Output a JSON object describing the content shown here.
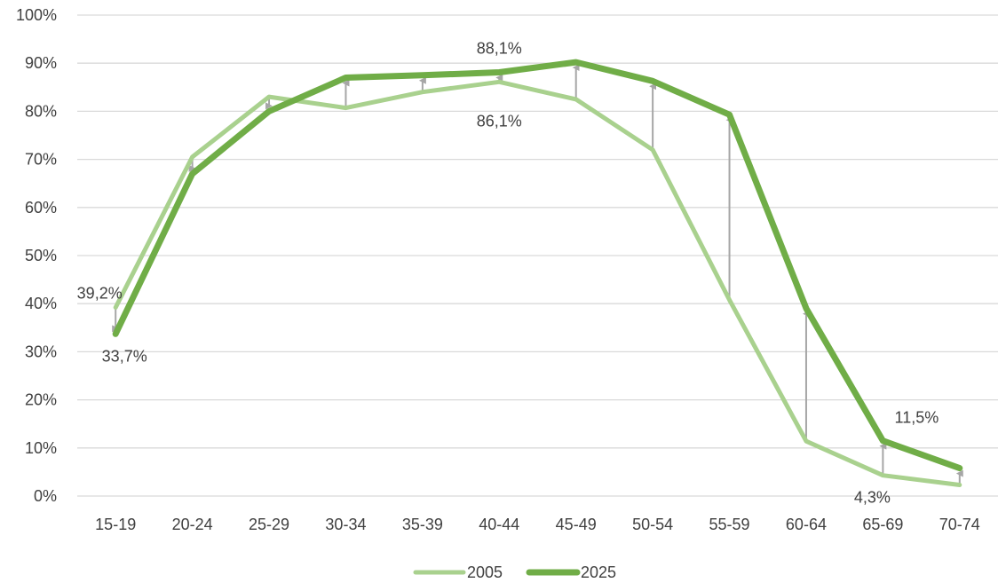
{
  "chart_data": {
    "type": "line",
    "categories": [
      "15-19",
      "20-24",
      "25-29",
      "30-34",
      "35-39",
      "40-44",
      "45-49",
      "50-54",
      "55-59",
      "60-64",
      "65-69",
      "70-74"
    ],
    "ylim": [
      0,
      100
    ],
    "yticks": [
      "0%",
      "10%",
      "20%",
      "30%",
      "40%",
      "50%",
      "60%",
      "70%",
      "80%",
      "90%",
      "100%"
    ],
    "grid": true,
    "legend_position": "bottom",
    "series": [
      {
        "name": "2005",
        "color": "#a9d18e",
        "values": [
          39.2,
          70.5,
          83.0,
          80.7,
          84.0,
          86.1,
          82.5,
          72.0,
          40.8,
          11.4,
          4.3,
          2.3
        ]
      },
      {
        "name": "2025",
        "color": "#70ad47",
        "values": [
          33.7,
          67.0,
          80.0,
          87.0,
          87.5,
          88.1,
          90.2,
          86.3,
          79.3,
          39.0,
          11.5,
          5.8
        ]
      }
    ],
    "change_arrows_color": "#a6a6a6",
    "data_labels": [
      {
        "text": "39,2%",
        "category": "15-19",
        "series": "2005"
      },
      {
        "text": "33,7%",
        "category": "15-19",
        "series": "2025"
      },
      {
        "text": "88,1%",
        "category": "40-44",
        "series": "2025"
      },
      {
        "text": "86,1%",
        "category": "40-44",
        "series": "2005"
      },
      {
        "text": "11,5%",
        "category": "65-69",
        "series": "2025"
      },
      {
        "text": "4,3%",
        "category": "65-69",
        "series": "2005"
      }
    ]
  }
}
